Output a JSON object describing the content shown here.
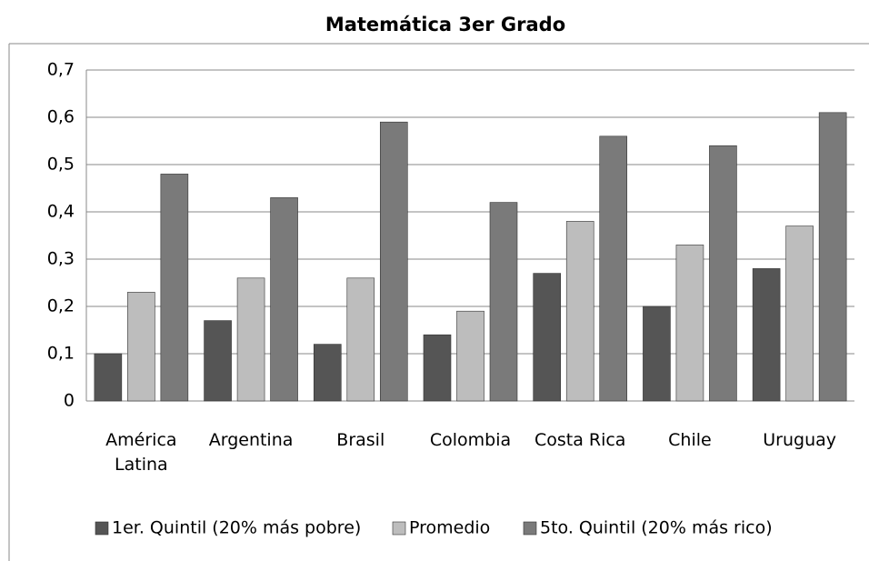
{
  "chart_data": {
    "type": "bar",
    "title": "Matemática 3er Grado",
    "categories": [
      "América Latina",
      "Argentina",
      "Brasil",
      "Colombia",
      "Costa Rica",
      "Chile",
      "Uruguay"
    ],
    "series": [
      {
        "name": "1er. Quintil (20% más pobre)",
        "color": "#555555",
        "values": [
          0.1,
          0.17,
          0.12,
          0.14,
          0.27,
          0.2,
          0.28
        ]
      },
      {
        "name": "Promedio",
        "color": "#bdbdbd",
        "values": [
          0.23,
          0.26,
          0.26,
          0.19,
          0.38,
          0.33,
          0.37
        ]
      },
      {
        "name": "5to. Quintil (20% más rico)",
        "color": "#7a7a7a",
        "values": [
          0.48,
          0.43,
          0.59,
          0.42,
          0.56,
          0.54,
          0.61
        ]
      }
    ],
    "ylim": [
      0,
      0.7
    ],
    "yticks": [
      0,
      {
        "value": 0.1,
        "label": "0,1"
      },
      {
        "value": 0.2,
        "label": "0,2"
      },
      {
        "value": 0.3,
        "label": "0,3"
      },
      {
        "value": 0.4,
        "label": "0,4"
      },
      {
        "value": 0.5,
        "label": "0,5"
      },
      {
        "value": 0.6,
        "label": "0,6"
      },
      {
        "value": 0.7,
        "label": "0,7"
      }
    ],
    "grid": true,
    "legend": "bottom"
  }
}
